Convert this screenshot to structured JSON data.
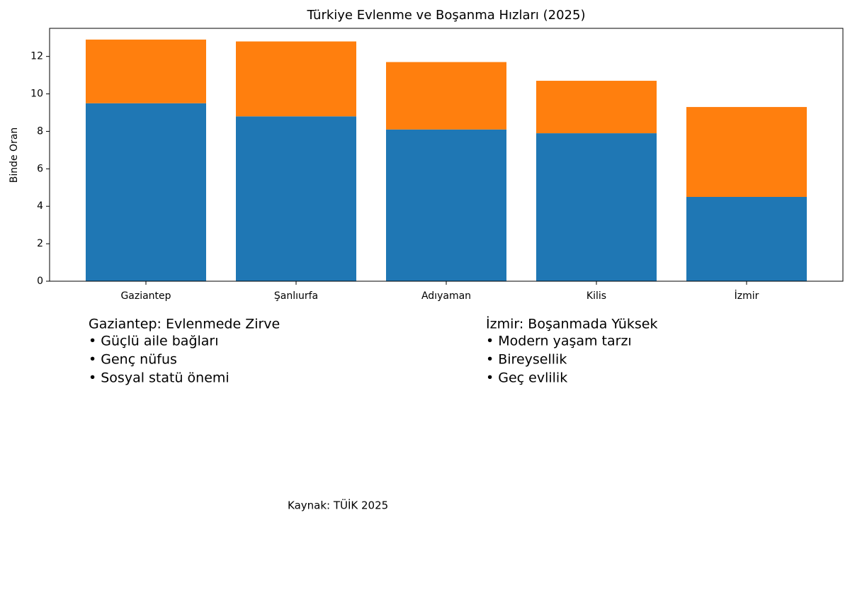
{
  "chart_data": {
    "type": "stacked-bar",
    "title": "Türkiye Evlenme ve Boşanma Hızları (2025)",
    "y_label": "Binde Oran",
    "categories": [
      "Gaziantep",
      "Şanlıurfa",
      "Adıyaman",
      "Kilis",
      "İzmir"
    ],
    "series": [
      {
        "color": "#1f77b4",
        "values": [
          9.5,
          8.8,
          8.1,
          7.9,
          4.5
        ]
      },
      {
        "color": "#ff7f0e",
        "values": [
          3.4,
          4.0,
          3.6,
          2.8,
          4.8
        ]
      }
    ],
    "ylim": [
      0,
      13.5
    ],
    "yticks": [
      0,
      2,
      4,
      6,
      8,
      10,
      12
    ],
    "grid": false,
    "annotations": [
      {
        "title": "Gaziantep: Evlenmede Zirve",
        "items": [
          "• Güçlü aile bağları",
          "• Genç nüfus",
          "• Sosyal statü önemi"
        ]
      },
      {
        "title": "İzmir: Boşanmada Yüksek",
        "items": [
          "• Modern yaşam tarzı",
          "• Bireysellik",
          "• Geç evlilik"
        ]
      }
    ],
    "source": "Kaynak: TÜİK 2025"
  }
}
